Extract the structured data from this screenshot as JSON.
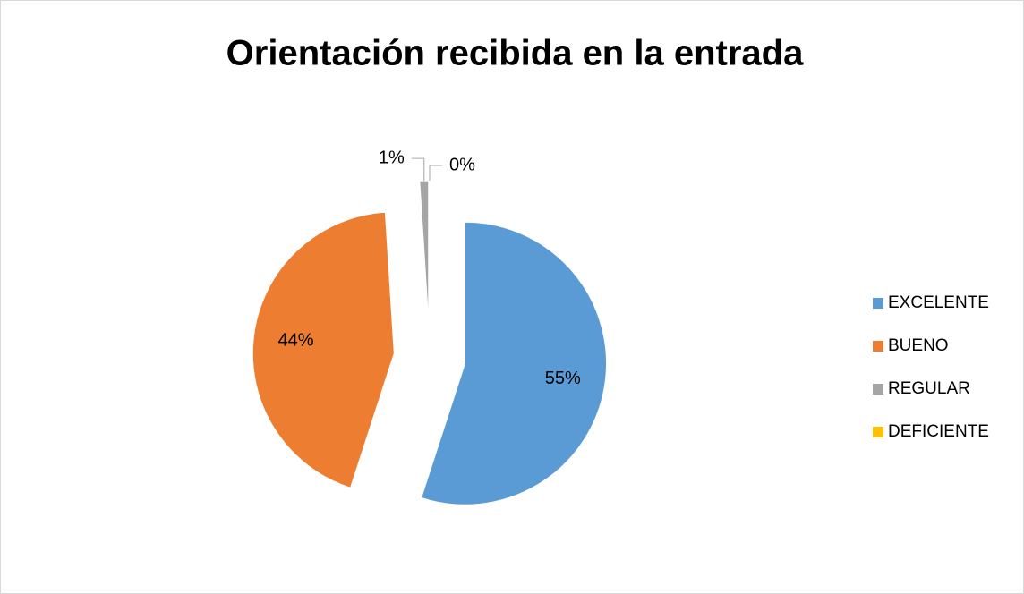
{
  "chart_data": {
    "type": "pie",
    "title": "Orientación recibida en la entrada",
    "categories": [
      "EXCELENTE",
      "BUENO",
      "REGULAR",
      "DEFICIENTE"
    ],
    "values": [
      55,
      44,
      1,
      0
    ],
    "value_labels": [
      "55%",
      "44%",
      "1%",
      "0%"
    ],
    "colors": [
      "#5b9bd5",
      "#ed7d31",
      "#a5a5a5",
      "#ffc000"
    ],
    "legend": "right"
  }
}
